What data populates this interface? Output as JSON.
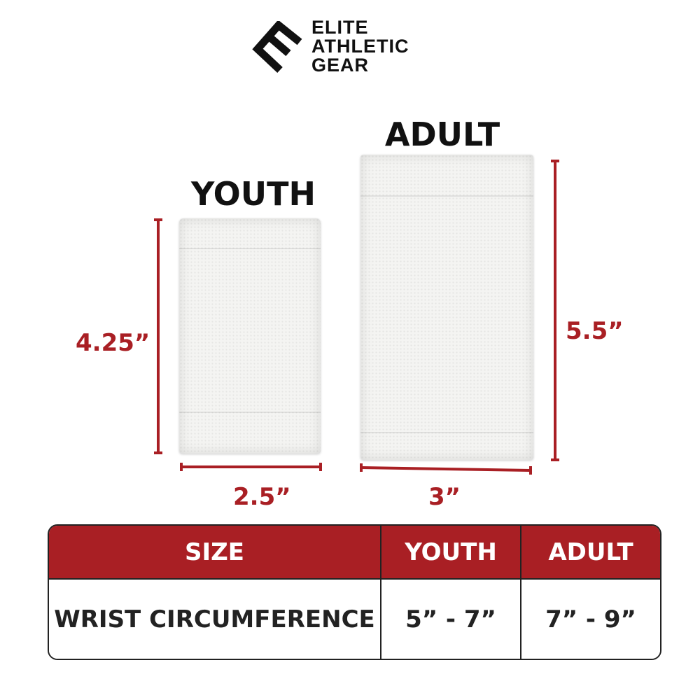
{
  "brand": {
    "logo_lines": [
      "ELITE",
      "ATHLETIC",
      "GEAR"
    ]
  },
  "products": {
    "youth": {
      "label": "YOUTH",
      "height": "4.25”",
      "width": "2.5”"
    },
    "adult": {
      "label": "ADULT",
      "height": "5.5”",
      "width": "3”"
    }
  },
  "size_table": {
    "headers": [
      "SIZE",
      "YOUTH",
      "ADULT"
    ],
    "rows": [
      {
        "label": "WRIST CIRCUMFERENCE",
        "youth": "5” - 7”",
        "adult": "7” - 9”"
      }
    ]
  },
  "colors": {
    "accent": "#a91f24",
    "text": "#111111"
  }
}
